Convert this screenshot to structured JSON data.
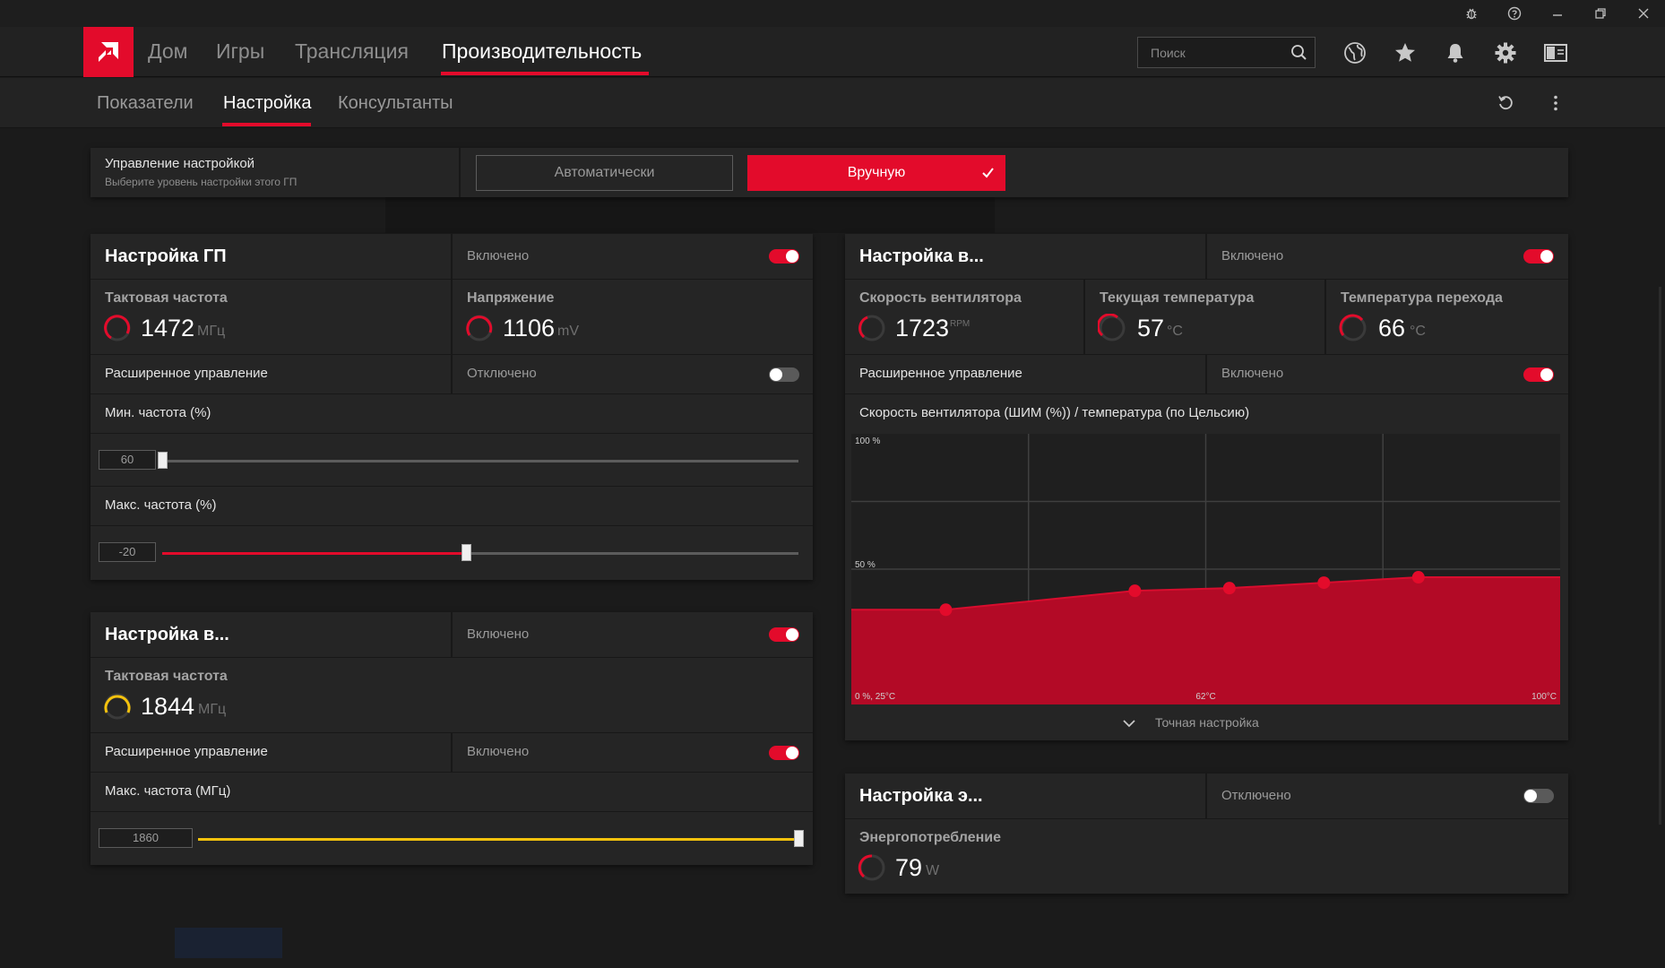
{
  "colors": {
    "accent": "#e30b2b",
    "memory_accent": "#f4c20d",
    "panel_bg": "#252525",
    "app_bg": "#1b1b1b"
  },
  "titlebar": {
    "icons": [
      "bug-icon",
      "help-icon",
      "minimize-icon",
      "restore-icon",
      "close-icon"
    ]
  },
  "nav": {
    "items": [
      {
        "label": "Дом"
      },
      {
        "label": "Игры"
      },
      {
        "label": "Трансляция"
      },
      {
        "label": "Производительность"
      }
    ],
    "active_index": 3,
    "search_placeholder": "Поиск",
    "icons": [
      "globe-icon",
      "star-icon",
      "bell-icon",
      "gear-icon",
      "sidebar-icon"
    ]
  },
  "subnav": {
    "items": [
      {
        "label": "Показатели"
      },
      {
        "label": "Настройка"
      },
      {
        "label": "Консультанты"
      }
    ],
    "active_index": 1,
    "icons": [
      "reset-icon",
      "more-icon"
    ]
  },
  "tuning_control": {
    "title": "Управление настройкой",
    "subtitle": "Выберите уровень настройки этого ГП",
    "auto_label": "Автоматически",
    "manual_label": "Вручную",
    "selected": "manual"
  },
  "gpu_panel": {
    "title": "Настройка ГП",
    "state": "Включено",
    "enabled": true,
    "clock": {
      "label": "Тактовая частота",
      "value": "1472",
      "unit": "МГц"
    },
    "voltage": {
      "label": "Напряжение",
      "value": "1106",
      "unit": "mV"
    },
    "advanced": {
      "label": "Расширенное управление",
      "state": "Отключено",
      "enabled": false
    },
    "min_freq": {
      "label": "Мин. частота (%)",
      "value": "60",
      "fraction": 0.0
    },
    "max_freq": {
      "label": "Макс. частота (%)",
      "value": "-20",
      "fraction": 0.478
    }
  },
  "vram_panel": {
    "title": "Настройка в...",
    "state": "Включено",
    "enabled": true,
    "clock": {
      "label": "Тактовая частота",
      "value": "1844",
      "unit": "МГц"
    },
    "advanced": {
      "label": "Расширенное управление",
      "state": "Включено",
      "enabled": true
    },
    "max_freq": {
      "label": "Макс. частота (МГц)",
      "value": "1860",
      "fraction": 1.0
    }
  },
  "fan_panel": {
    "title": "Настройка в...",
    "state": "Включено",
    "enabled": true,
    "fan_speed": {
      "label": "Скорость вентилятора",
      "value": "1723",
      "unit": "RPM"
    },
    "current_temp": {
      "label": "Текущая температура",
      "value": "57",
      "unit": "°C"
    },
    "junction_temp": {
      "label": "Температура перехода",
      "value": "66",
      "unit": "°C"
    },
    "advanced": {
      "label": "Расширенное управление",
      "state": "Включено",
      "enabled": true
    },
    "chart_title": "Скорость вентилятора (ШИМ (%)) / температура (по Цельсию)",
    "fine_tune_label": "Точная настройка"
  },
  "power_panel": {
    "title": "Настройка э...",
    "state": "Отключено",
    "enabled": false,
    "power": {
      "label": "Энергопотребление",
      "value": "79",
      "unit": "W"
    }
  },
  "chart_data": {
    "type": "area",
    "title": "Скорость вентилятора (ШИМ (%)) / температура (по Цельсию)",
    "xlabel": "",
    "ylabel": "",
    "xlim": [
      25,
      100
    ],
    "ylim": [
      0,
      100
    ],
    "x_tick_labels": [
      "0 %, 25°C",
      "62°C",
      "100°C"
    ],
    "y_tick_labels": [
      "100 %",
      "50 %"
    ],
    "grid": true,
    "points": [
      {
        "x": 35,
        "y": 35
      },
      {
        "x": 55,
        "y": 42
      },
      {
        "x": 65,
        "y": 43
      },
      {
        "x": 75,
        "y": 45
      },
      {
        "x": 85,
        "y": 47
      }
    ],
    "curve_end": {
      "x": 100,
      "y": 47
    },
    "curve_start": {
      "x": 25,
      "y": 35
    }
  }
}
